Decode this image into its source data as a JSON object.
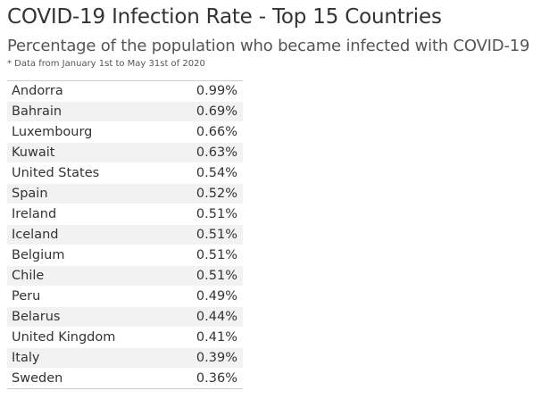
{
  "header": {
    "title": "COVID-19 Infection Rate - Top 15 Countries",
    "subtitle": "Percentage of the population who became infected with COVID-19",
    "note": "* Data from January 1st to May 31st of 2020"
  },
  "chart_data": {
    "type": "table",
    "title": "COVID-19 Infection Rate - Top 15 Countries",
    "subtitle": "Percentage of the population who became infected with COVID-19",
    "rows": [
      {
        "country": "Andorra",
        "value": "0.99%"
      },
      {
        "country": "Bahrain",
        "value": "0.69%"
      },
      {
        "country": "Luxembourg",
        "value": "0.66%"
      },
      {
        "country": "Kuwait",
        "value": "0.63%"
      },
      {
        "country": "United States",
        "value": "0.54%"
      },
      {
        "country": "Spain",
        "value": "0.52%"
      },
      {
        "country": "Ireland",
        "value": "0.51%"
      },
      {
        "country": "Iceland",
        "value": "0.51%"
      },
      {
        "country": "Belgium",
        "value": "0.51%"
      },
      {
        "country": "Chile",
        "value": "0.51%"
      },
      {
        "country": "Peru",
        "value": "0.49%"
      },
      {
        "country": "Belarus",
        "value": "0.44%"
      },
      {
        "country": "United Kingdom",
        "value": "0.41%"
      },
      {
        "country": "Italy",
        "value": "0.39%"
      },
      {
        "country": "Sweden",
        "value": "0.36%"
      }
    ]
  }
}
